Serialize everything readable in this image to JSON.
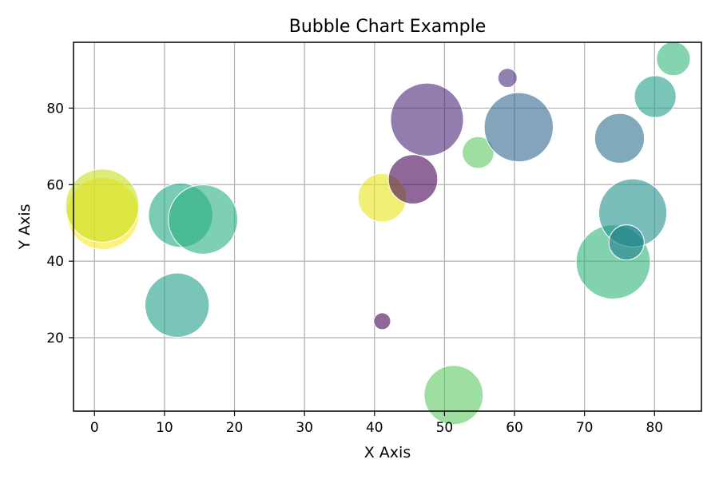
{
  "chart_data": {
    "type": "scatter",
    "variant": "bubble",
    "title": "Bubble Chart Example",
    "xlabel": "X Axis",
    "ylabel": "Y Axis",
    "xlim": [
      -3,
      86.7
    ],
    "ylim": [
      0.8,
      97.2
    ],
    "xticks": [
      0,
      10,
      20,
      30,
      40,
      50,
      60,
      70,
      80
    ],
    "yticks": [
      20,
      40,
      60,
      80
    ],
    "grid": true,
    "bubble_opacity": 0.6,
    "size_unit": "relative area",
    "points": [
      {
        "x": 1.2,
        "y": 52.5,
        "size": 1140,
        "color": "#fde725"
      },
      {
        "x": 1.1,
        "y": 54.5,
        "size": 1170,
        "color": "#c8e020"
      },
      {
        "x": 12.3,
        "y": 52.0,
        "size": 900,
        "color": "#22a884"
      },
      {
        "x": 15.5,
        "y": 50.9,
        "size": 1050,
        "color": "#2ab07f"
      },
      {
        "x": 11.8,
        "y": 28.5,
        "size": 900,
        "color": "#1f9e89"
      },
      {
        "x": 41.1,
        "y": 56.6,
        "size": 510,
        "color": "#e8e419"
      },
      {
        "x": 41.1,
        "y": 24.3,
        "size": 62,
        "color": "#440154"
      },
      {
        "x": 45.5,
        "y": 61.4,
        "size": 530,
        "color": "#440154"
      },
      {
        "x": 47.5,
        "y": 77.0,
        "size": 1160,
        "color": "#482878"
      },
      {
        "x": 51.3,
        "y": 5.0,
        "size": 760,
        "color": "#5ec962"
      },
      {
        "x": 54.8,
        "y": 68.4,
        "size": 220,
        "color": "#5ec962"
      },
      {
        "x": 59.0,
        "y": 87.9,
        "size": 80,
        "color": "#472d7b"
      },
      {
        "x": 60.6,
        "y": 75.0,
        "size": 1040,
        "color": "#31688e"
      },
      {
        "x": 74.1,
        "y": 39.8,
        "size": 1200,
        "color": "#2fb47c"
      },
      {
        "x": 75.0,
        "y": 72.1,
        "size": 540,
        "color": "#2c728e"
      },
      {
        "x": 76.9,
        "y": 52.6,
        "size": 1010,
        "color": "#21918c"
      },
      {
        "x": 76.0,
        "y": 44.9,
        "size": 270,
        "color": "#1f7f8c"
      },
      {
        "x": 80.1,
        "y": 83.0,
        "size": 380,
        "color": "#1f9e89"
      },
      {
        "x": 82.7,
        "y": 92.9,
        "size": 250,
        "color": "#35b779"
      }
    ]
  }
}
